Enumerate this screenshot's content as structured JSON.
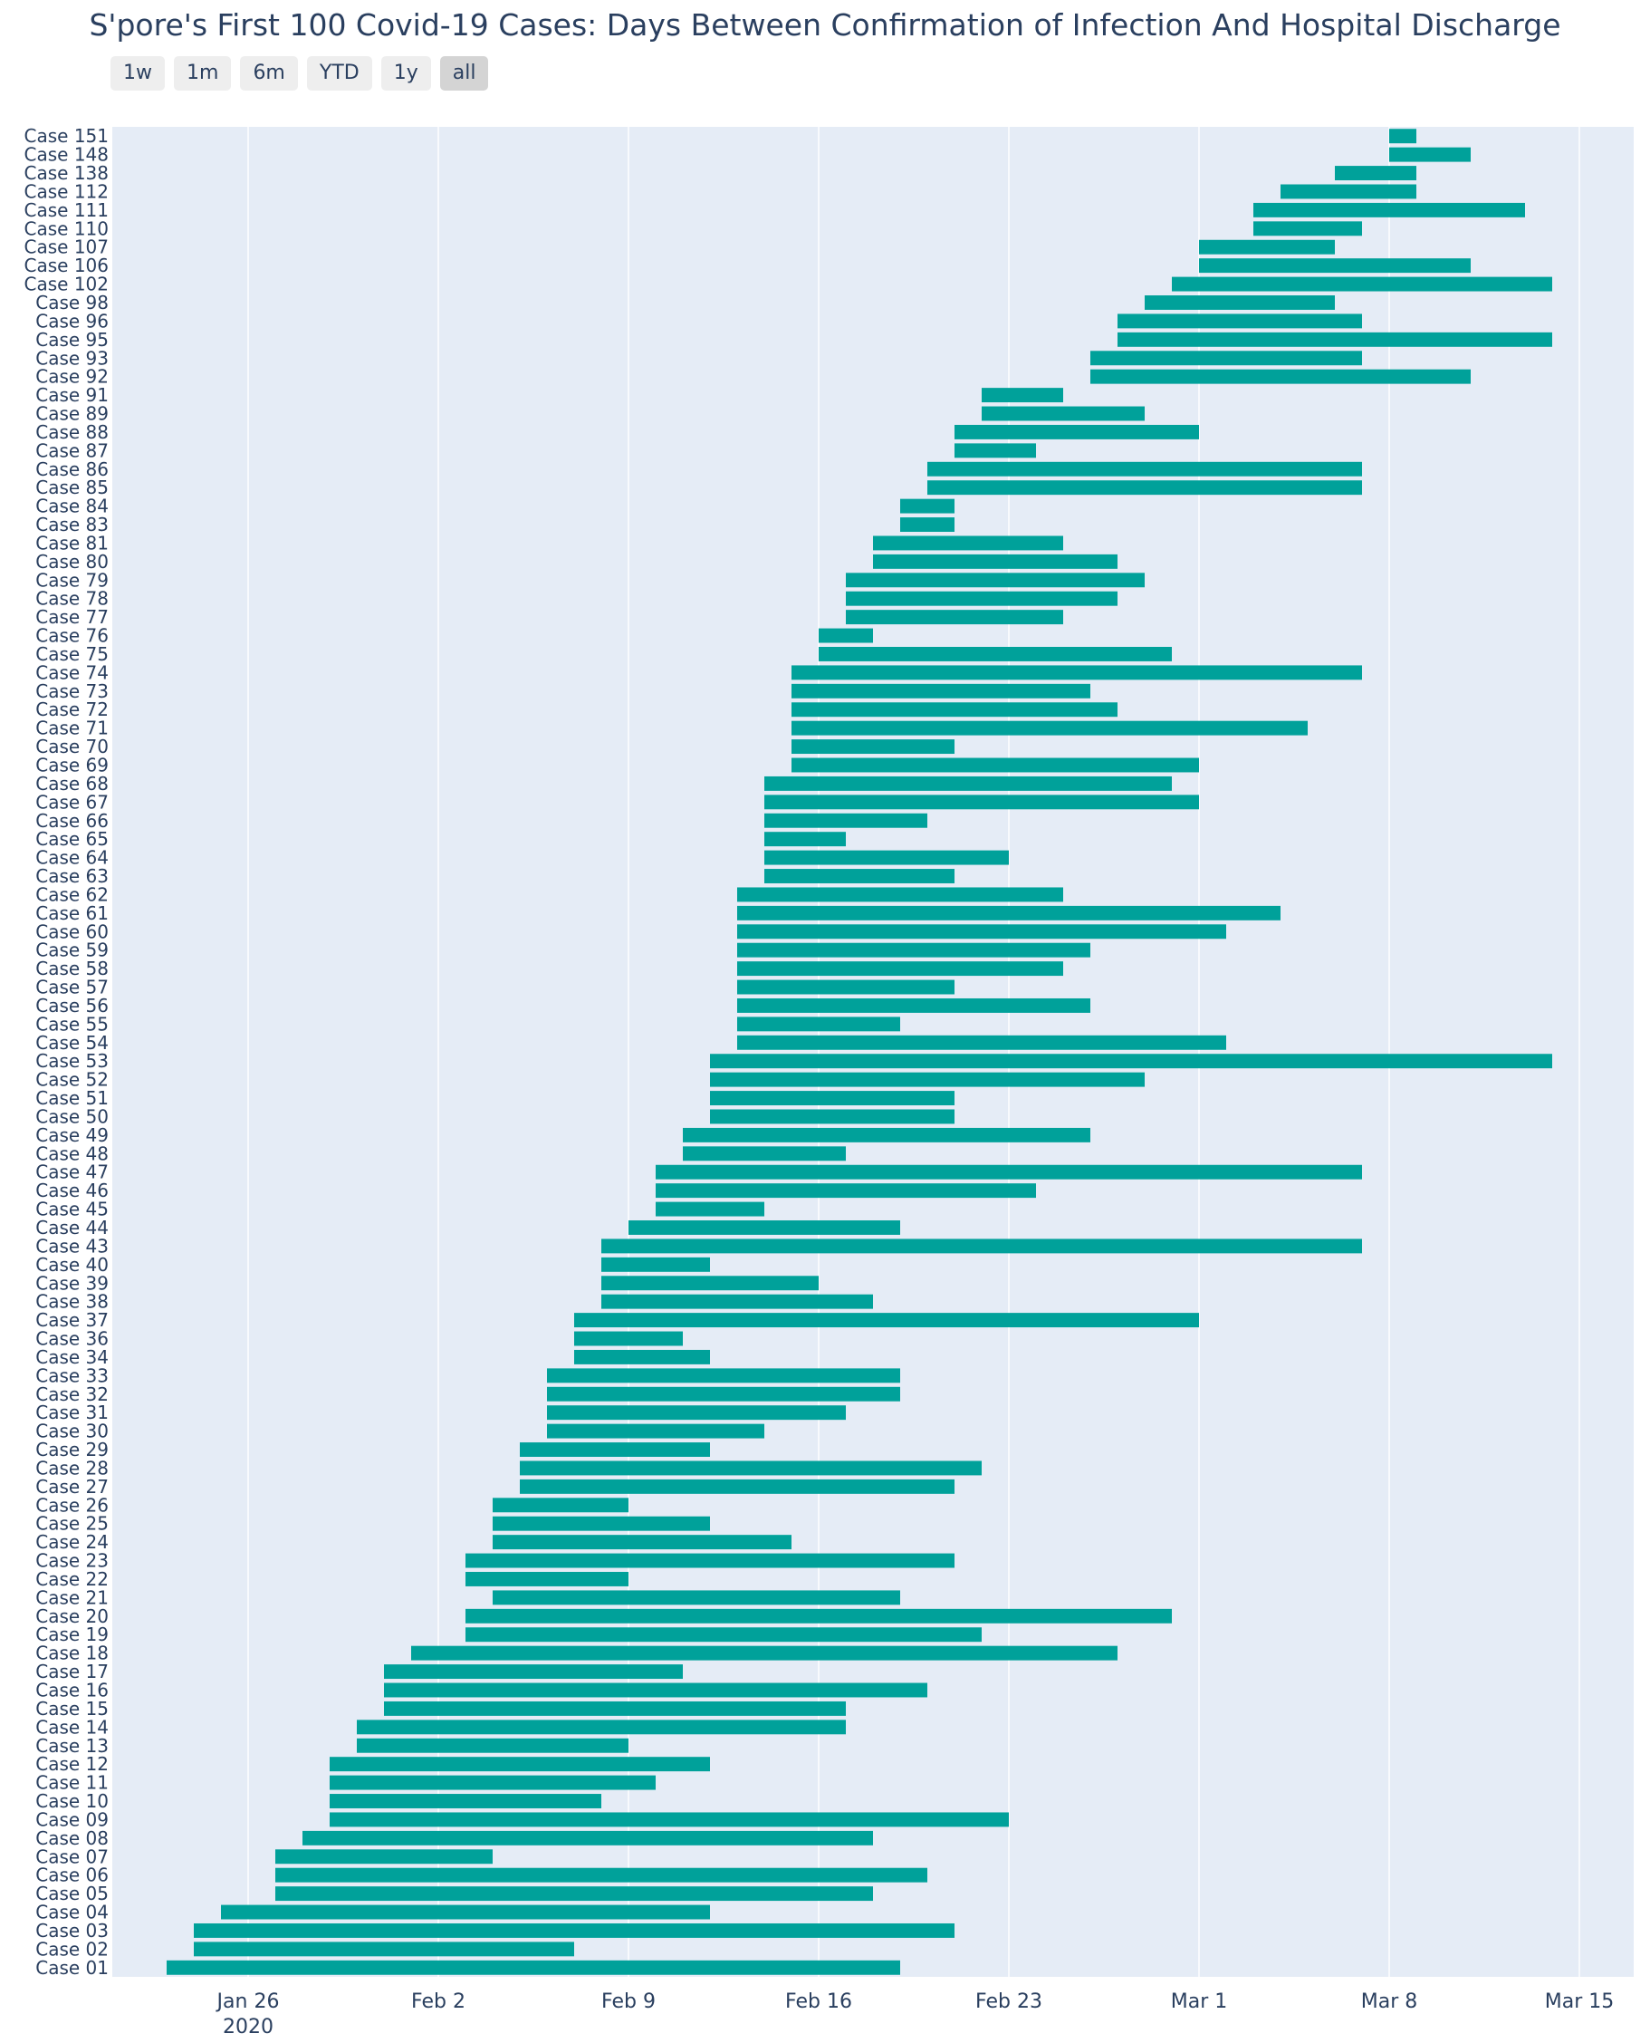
{
  "colors": {
    "bar": "#00a19a",
    "plot_bg": "#e5ecf6",
    "grid": "#ffffff",
    "text": "#2a3f5f"
  },
  "range_selector": {
    "buttons": [
      {
        "label": "1w",
        "active": false
      },
      {
        "label": "1m",
        "active": false
      },
      {
        "label": "6m",
        "active": false
      },
      {
        "label": "YTD",
        "active": false
      },
      {
        "label": "1y",
        "active": false
      },
      {
        "label": "all",
        "active": true
      }
    ]
  },
  "chart_data": {
    "type": "bar",
    "orientation": "horizontal-timeline",
    "title": "S'pore's First 100 Covid-19 Cases: Days Between Confirmation of Infection And Hospital Discharge",
    "xlabel": "",
    "ylabel": "",
    "grid": true,
    "xlim": [
      "2020-01-21",
      "2020-03-17"
    ],
    "x_ticks": [
      {
        "date": "2020-01-26",
        "label": "Jan 26",
        "sublabel": "2020"
      },
      {
        "date": "2020-02-02",
        "label": "Feb 2",
        "sublabel": ""
      },
      {
        "date": "2020-02-09",
        "label": "Feb 9",
        "sublabel": ""
      },
      {
        "date": "2020-02-16",
        "label": "Feb 16",
        "sublabel": ""
      },
      {
        "date": "2020-02-23",
        "label": "Feb 23",
        "sublabel": ""
      },
      {
        "date": "2020-03-01",
        "label": "Mar 1",
        "sublabel": ""
      },
      {
        "date": "2020-03-08",
        "label": "Mar 8",
        "sublabel": ""
      },
      {
        "date": "2020-03-15",
        "label": "Mar 15",
        "sublabel": ""
      }
    ],
    "bars": [
      {
        "case": "Case 01",
        "start": "2020-01-23",
        "end": "2020-02-19"
      },
      {
        "case": "Case 02",
        "start": "2020-01-24",
        "end": "2020-02-07"
      },
      {
        "case": "Case 03",
        "start": "2020-01-24",
        "end": "2020-02-21"
      },
      {
        "case": "Case 04",
        "start": "2020-01-25",
        "end": "2020-02-12"
      },
      {
        "case": "Case 05",
        "start": "2020-01-27",
        "end": "2020-02-18"
      },
      {
        "case": "Case 06",
        "start": "2020-01-27",
        "end": "2020-02-20"
      },
      {
        "case": "Case 07",
        "start": "2020-01-27",
        "end": "2020-02-04"
      },
      {
        "case": "Case 08",
        "start": "2020-01-28",
        "end": "2020-02-18"
      },
      {
        "case": "Case 09",
        "start": "2020-01-29",
        "end": "2020-02-23"
      },
      {
        "case": "Case 10",
        "start": "2020-01-29",
        "end": "2020-02-08"
      },
      {
        "case": "Case 11",
        "start": "2020-01-29",
        "end": "2020-02-10"
      },
      {
        "case": "Case 12",
        "start": "2020-01-29",
        "end": "2020-02-12"
      },
      {
        "case": "Case 13",
        "start": "2020-01-30",
        "end": "2020-02-09"
      },
      {
        "case": "Case 14",
        "start": "2020-01-30",
        "end": "2020-02-17"
      },
      {
        "case": "Case 15",
        "start": "2020-01-31",
        "end": "2020-02-17"
      },
      {
        "case": "Case 16",
        "start": "2020-01-31",
        "end": "2020-02-20"
      },
      {
        "case": "Case 17",
        "start": "2020-01-31",
        "end": "2020-02-11"
      },
      {
        "case": "Case 18",
        "start": "2020-02-01",
        "end": "2020-02-27"
      },
      {
        "case": "Case 19",
        "start": "2020-02-03",
        "end": "2020-02-22"
      },
      {
        "case": "Case 20",
        "start": "2020-02-03",
        "end": "2020-02-29"
      },
      {
        "case": "Case 21",
        "start": "2020-02-04",
        "end": "2020-02-19"
      },
      {
        "case": "Case 22",
        "start": "2020-02-03",
        "end": "2020-02-09"
      },
      {
        "case": "Case 23",
        "start": "2020-02-03",
        "end": "2020-02-21"
      },
      {
        "case": "Case 24",
        "start": "2020-02-04",
        "end": "2020-02-15"
      },
      {
        "case": "Case 25",
        "start": "2020-02-04",
        "end": "2020-02-12"
      },
      {
        "case": "Case 26",
        "start": "2020-02-04",
        "end": "2020-02-09"
      },
      {
        "case": "Case 27",
        "start": "2020-02-05",
        "end": "2020-02-21"
      },
      {
        "case": "Case 28",
        "start": "2020-02-05",
        "end": "2020-02-22"
      },
      {
        "case": "Case 29",
        "start": "2020-02-05",
        "end": "2020-02-12"
      },
      {
        "case": "Case 30",
        "start": "2020-02-06",
        "end": "2020-02-14"
      },
      {
        "case": "Case 31",
        "start": "2020-02-06",
        "end": "2020-02-17"
      },
      {
        "case": "Case 32",
        "start": "2020-02-06",
        "end": "2020-02-19"
      },
      {
        "case": "Case 33",
        "start": "2020-02-06",
        "end": "2020-02-19"
      },
      {
        "case": "Case 34",
        "start": "2020-02-07",
        "end": "2020-02-12"
      },
      {
        "case": "Case 36",
        "start": "2020-02-07",
        "end": "2020-02-11"
      },
      {
        "case": "Case 37",
        "start": "2020-02-07",
        "end": "2020-03-01"
      },
      {
        "case": "Case 38",
        "start": "2020-02-08",
        "end": "2020-02-18"
      },
      {
        "case": "Case 39",
        "start": "2020-02-08",
        "end": "2020-02-16"
      },
      {
        "case": "Case 40",
        "start": "2020-02-08",
        "end": "2020-02-12"
      },
      {
        "case": "Case 43",
        "start": "2020-02-08",
        "end": "2020-03-07"
      },
      {
        "case": "Case 44",
        "start": "2020-02-09",
        "end": "2020-02-19"
      },
      {
        "case": "Case 45",
        "start": "2020-02-10",
        "end": "2020-02-14"
      },
      {
        "case": "Case 46",
        "start": "2020-02-10",
        "end": "2020-02-24"
      },
      {
        "case": "Case 47",
        "start": "2020-02-10",
        "end": "2020-03-07"
      },
      {
        "case": "Case 48",
        "start": "2020-02-11",
        "end": "2020-02-17"
      },
      {
        "case": "Case 49",
        "start": "2020-02-11",
        "end": "2020-02-26"
      },
      {
        "case": "Case 50",
        "start": "2020-02-12",
        "end": "2020-02-21"
      },
      {
        "case": "Case 51",
        "start": "2020-02-12",
        "end": "2020-02-21"
      },
      {
        "case": "Case 52",
        "start": "2020-02-12",
        "end": "2020-02-28"
      },
      {
        "case": "Case 53",
        "start": "2020-02-12",
        "end": "2020-03-14"
      },
      {
        "case": "Case 54",
        "start": "2020-02-13",
        "end": "2020-03-02"
      },
      {
        "case": "Case 55",
        "start": "2020-02-13",
        "end": "2020-02-19"
      },
      {
        "case": "Case 56",
        "start": "2020-02-13",
        "end": "2020-02-26"
      },
      {
        "case": "Case 57",
        "start": "2020-02-13",
        "end": "2020-02-21"
      },
      {
        "case": "Case 58",
        "start": "2020-02-13",
        "end": "2020-02-25"
      },
      {
        "case": "Case 59",
        "start": "2020-02-13",
        "end": "2020-02-26"
      },
      {
        "case": "Case 60",
        "start": "2020-02-13",
        "end": "2020-03-02"
      },
      {
        "case": "Case 61",
        "start": "2020-02-13",
        "end": "2020-03-04"
      },
      {
        "case": "Case 62",
        "start": "2020-02-13",
        "end": "2020-02-25"
      },
      {
        "case": "Case 63",
        "start": "2020-02-14",
        "end": "2020-02-21"
      },
      {
        "case": "Case 64",
        "start": "2020-02-14",
        "end": "2020-02-23"
      },
      {
        "case": "Case 65",
        "start": "2020-02-14",
        "end": "2020-02-17"
      },
      {
        "case": "Case 66",
        "start": "2020-02-14",
        "end": "2020-02-20"
      },
      {
        "case": "Case 67",
        "start": "2020-02-14",
        "end": "2020-03-01"
      },
      {
        "case": "Case 68",
        "start": "2020-02-14",
        "end": "2020-02-29"
      },
      {
        "case": "Case 69",
        "start": "2020-02-15",
        "end": "2020-03-01"
      },
      {
        "case": "Case 70",
        "start": "2020-02-15",
        "end": "2020-02-21"
      },
      {
        "case": "Case 71",
        "start": "2020-02-15",
        "end": "2020-03-05"
      },
      {
        "case": "Case 72",
        "start": "2020-02-15",
        "end": "2020-02-27"
      },
      {
        "case": "Case 73",
        "start": "2020-02-15",
        "end": "2020-02-26"
      },
      {
        "case": "Case 74",
        "start": "2020-02-15",
        "end": "2020-03-07"
      },
      {
        "case": "Case 75",
        "start": "2020-02-16",
        "end": "2020-02-29"
      },
      {
        "case": "Case 76",
        "start": "2020-02-16",
        "end": "2020-02-18"
      },
      {
        "case": "Case 77",
        "start": "2020-02-17",
        "end": "2020-02-25"
      },
      {
        "case": "Case 78",
        "start": "2020-02-17",
        "end": "2020-02-27"
      },
      {
        "case": "Case 79",
        "start": "2020-02-17",
        "end": "2020-02-28"
      },
      {
        "case": "Case 80",
        "start": "2020-02-18",
        "end": "2020-02-27"
      },
      {
        "case": "Case 81",
        "start": "2020-02-18",
        "end": "2020-02-25"
      },
      {
        "case": "Case 83",
        "start": "2020-02-19",
        "end": "2020-02-21"
      },
      {
        "case": "Case 84",
        "start": "2020-02-19",
        "end": "2020-02-21"
      },
      {
        "case": "Case 85",
        "start": "2020-02-20",
        "end": "2020-03-07"
      },
      {
        "case": "Case 86",
        "start": "2020-02-20",
        "end": "2020-03-07"
      },
      {
        "case": "Case 87",
        "start": "2020-02-21",
        "end": "2020-02-24"
      },
      {
        "case": "Case 88",
        "start": "2020-02-21",
        "end": "2020-03-01"
      },
      {
        "case": "Case 89",
        "start": "2020-02-22",
        "end": "2020-02-28"
      },
      {
        "case": "Case 91",
        "start": "2020-02-22",
        "end": "2020-02-25"
      },
      {
        "case": "Case 92",
        "start": "2020-02-26",
        "end": "2020-03-11"
      },
      {
        "case": "Case 93",
        "start": "2020-02-26",
        "end": "2020-03-07"
      },
      {
        "case": "Case 95",
        "start": "2020-02-27",
        "end": "2020-03-14"
      },
      {
        "case": "Case 96",
        "start": "2020-02-27",
        "end": "2020-03-07"
      },
      {
        "case": "Case 98",
        "start": "2020-02-28",
        "end": "2020-03-06"
      },
      {
        "case": "Case 102",
        "start": "2020-02-29",
        "end": "2020-03-14"
      },
      {
        "case": "Case 106",
        "start": "2020-03-01",
        "end": "2020-03-11"
      },
      {
        "case": "Case 107",
        "start": "2020-03-01",
        "end": "2020-03-06"
      },
      {
        "case": "Case 110",
        "start": "2020-03-03",
        "end": "2020-03-07"
      },
      {
        "case": "Case 111",
        "start": "2020-03-03",
        "end": "2020-03-13"
      },
      {
        "case": "Case 112",
        "start": "2020-03-04",
        "end": "2020-03-09"
      },
      {
        "case": "Case 138",
        "start": "2020-03-06",
        "end": "2020-03-09"
      },
      {
        "case": "Case 148",
        "start": "2020-03-08",
        "end": "2020-03-11"
      },
      {
        "case": "Case 151",
        "start": "2020-03-08",
        "end": "2020-03-09"
      }
    ]
  }
}
